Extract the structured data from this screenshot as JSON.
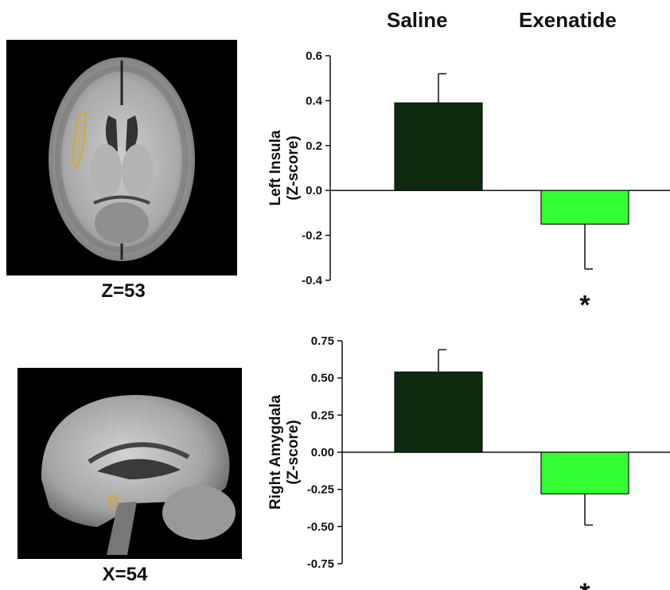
{
  "groups": [
    "Saline",
    "Exenatide"
  ],
  "panels": [
    {
      "coord_label": "Z=53"
    },
    {
      "coord_label": "X=54"
    }
  ],
  "colors": {
    "saline": "#0f2a0f",
    "exenatide": "#33ff33",
    "roi_outline": "#d4a82a"
  },
  "chart_data": [
    {
      "type": "bar",
      "categories": [
        "Saline",
        "Exenatide"
      ],
      "values": [
        0.39,
        -0.15
      ],
      "error": [
        0.13,
        0.2
      ],
      "ylabel": [
        "Left Insula",
        "(Z-score)"
      ],
      "ylim": [
        -0.4,
        0.6
      ],
      "yticks": [
        0.6,
        0.4,
        0.2,
        0.0,
        -0.2,
        -0.4
      ],
      "ytick_labels": [
        "0.6",
        "0.4",
        "0.2",
        "0.0",
        "-0.2",
        "-0.4"
      ],
      "annotation": "*",
      "annotation_value": -0.48
    },
    {
      "type": "bar",
      "categories": [
        "Saline",
        "Exenatide"
      ],
      "values": [
        0.54,
        -0.28
      ],
      "error": [
        0.15,
        0.21
      ],
      "ylabel": [
        "Right Amygdala",
        "(Z-score)"
      ],
      "ylim": [
        -0.75,
        0.75
      ],
      "yticks": [
        0.75,
        0.5,
        0.25,
        0.0,
        -0.25,
        -0.5,
        -0.75
      ],
      "ytick_labels": [
        "0.75",
        "0.50",
        "0.25",
        "0.00",
        "-0.25",
        "-0.50",
        "-0.75"
      ],
      "annotation": "*",
      "annotation_value": -0.9
    }
  ]
}
